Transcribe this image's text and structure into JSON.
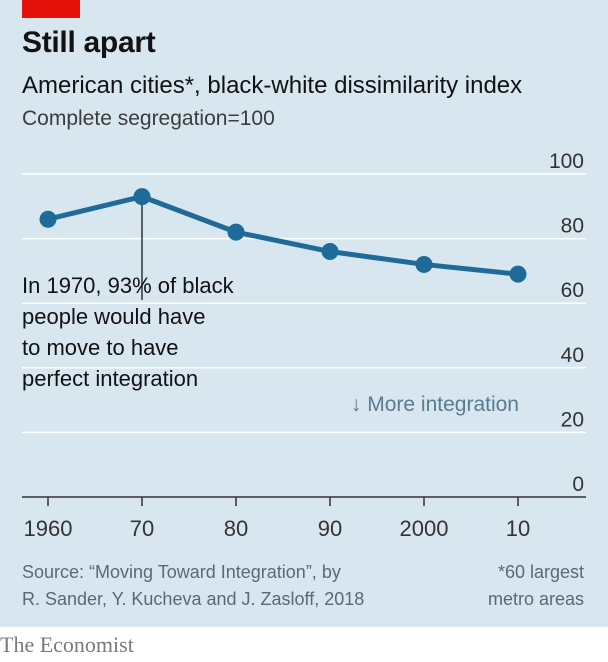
{
  "header": {
    "title": "Still apart",
    "subtitle": "American cities*, black-white dissimilarity index",
    "unit_note": "Complete segregation=100"
  },
  "annotations": {
    "callout_lines": [
      "In 1970, 93% of black",
      "people would have",
      "to move to have",
      "perfect integration"
    ],
    "direction_note": "↓ More integration"
  },
  "footer": {
    "source_lines": [
      "Source: “Moving Toward Integration”, by",
      "R. Sander, Y. Kucheva and J. Zasloff, 2018"
    ],
    "footnote_lines": [
      "*60 largest",
      "metro areas"
    ],
    "brand": "The Economist"
  },
  "colors": {
    "line": "#1f6a99",
    "background": "#d7e6ef",
    "accent": "#e3120b",
    "grid": "#ffffff"
  },
  "chart_data": {
    "type": "line",
    "title": "Still apart",
    "x": [
      1960,
      1970,
      1980,
      1990,
      2000,
      2010
    ],
    "x_tick_labels": [
      "1960",
      "70",
      "80",
      "90",
      "2000",
      "10"
    ],
    "series": [
      {
        "values": [
          86,
          93,
          82,
          76,
          72,
          69
        ]
      }
    ],
    "y_ticks": [
      0,
      20,
      40,
      60,
      80,
      100
    ],
    "ylim": [
      0,
      100
    ],
    "xlim": [
      1960,
      2010
    ],
    "grid": true
  }
}
